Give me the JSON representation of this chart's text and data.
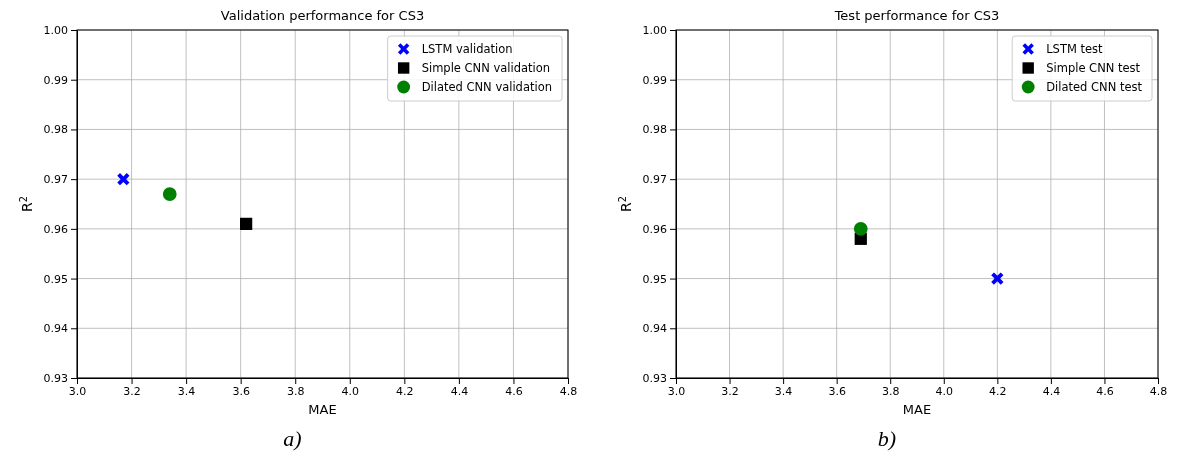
{
  "chart_data": [
    {
      "type": "scatter",
      "title": "Validation performance for CS3",
      "xlabel": "MAE",
      "ylabel": "R$^{2}$",
      "xlim": [
        3.0,
        4.8
      ],
      "ylim": [
        0.93,
        1.0
      ],
      "xticks": [
        {
          "value": 3.0,
          "label": "3.0"
        },
        {
          "value": 3.2,
          "label": "3.2"
        },
        {
          "value": 3.4,
          "label": "3.4"
        },
        {
          "value": 3.6,
          "label": "3.6"
        },
        {
          "value": 3.8,
          "label": "3.8"
        },
        {
          "value": 4.0,
          "label": "4.0"
        },
        {
          "value": 4.2,
          "label": "4.2"
        },
        {
          "value": 4.4,
          "label": "4.4"
        },
        {
          "value": 4.6,
          "label": "4.6"
        },
        {
          "value": 4.8,
          "label": "4.8"
        }
      ],
      "yticks": [
        {
          "value": 0.93,
          "label": "0.93"
        },
        {
          "value": 0.94,
          "label": "0.94"
        },
        {
          "value": 0.95,
          "label": "0.95"
        },
        {
          "value": 0.96,
          "label": "0.96"
        },
        {
          "value": 0.97,
          "label": "0.97"
        },
        {
          "value": 0.98,
          "label": "0.98"
        },
        {
          "value": 0.99,
          "label": "0.99"
        },
        {
          "value": 1.0,
          "label": "1.00"
        }
      ],
      "grid": true,
      "legend": "top right",
      "annotations": [
        "a)"
      ],
      "series": [
        {
          "name": "LSTM validation",
          "color": "#0000ff",
          "marker": "cross",
          "x": [
            3.17
          ],
          "values": [
            0.97
          ]
        },
        {
          "name": "Simple CNN validation",
          "color": "#000000",
          "marker": "square",
          "x": [
            3.62
          ],
          "values": [
            0.961
          ]
        },
        {
          "name": "Dilated CNN validation",
          "color": "#008000",
          "marker": "circle",
          "x": [
            3.34
          ],
          "values": [
            0.967
          ]
        }
      ]
    },
    {
      "type": "scatter",
      "title": "Test performance for CS3",
      "xlabel": "MAE",
      "ylabel": "R$^{2}$",
      "xlim": [
        3.0,
        4.8
      ],
      "ylim": [
        0.93,
        1.0
      ],
      "xticks": [
        {
          "value": 3.0,
          "label": "3.0"
        },
        {
          "value": 3.2,
          "label": "3.2"
        },
        {
          "value": 3.4,
          "label": "3.4"
        },
        {
          "value": 3.6,
          "label": "3.6"
        },
        {
          "value": 3.8,
          "label": "3.8"
        },
        {
          "value": 4.0,
          "label": "4.0"
        },
        {
          "value": 4.2,
          "label": "4.2"
        },
        {
          "value": 4.4,
          "label": "4.4"
        },
        {
          "value": 4.6,
          "label": "4.6"
        },
        {
          "value": 4.8,
          "label": "4.8"
        }
      ],
      "yticks": [
        {
          "value": 0.93,
          "label": "0.93"
        },
        {
          "value": 0.94,
          "label": "0.94"
        },
        {
          "value": 0.95,
          "label": "0.95"
        },
        {
          "value": 0.96,
          "label": "0.96"
        },
        {
          "value": 0.97,
          "label": "0.97"
        },
        {
          "value": 0.98,
          "label": "0.98"
        },
        {
          "value": 0.99,
          "label": "0.99"
        },
        {
          "value": 1.0,
          "label": "1.00"
        }
      ],
      "grid": true,
      "legend": "top right",
      "annotations": [
        "b)"
      ],
      "series": [
        {
          "name": "LSTM test",
          "color": "#0000ff",
          "marker": "cross",
          "x": [
            4.2
          ],
          "values": [
            0.95
          ]
        },
        {
          "name": "Simple CNN test",
          "color": "#000000",
          "marker": "square",
          "x": [
            3.69
          ],
          "values": [
            0.958
          ]
        },
        {
          "name": "Dilated CNN test",
          "color": "#008000",
          "marker": "circle",
          "x": [
            3.69
          ],
          "values": [
            0.96
          ]
        }
      ]
    }
  ]
}
